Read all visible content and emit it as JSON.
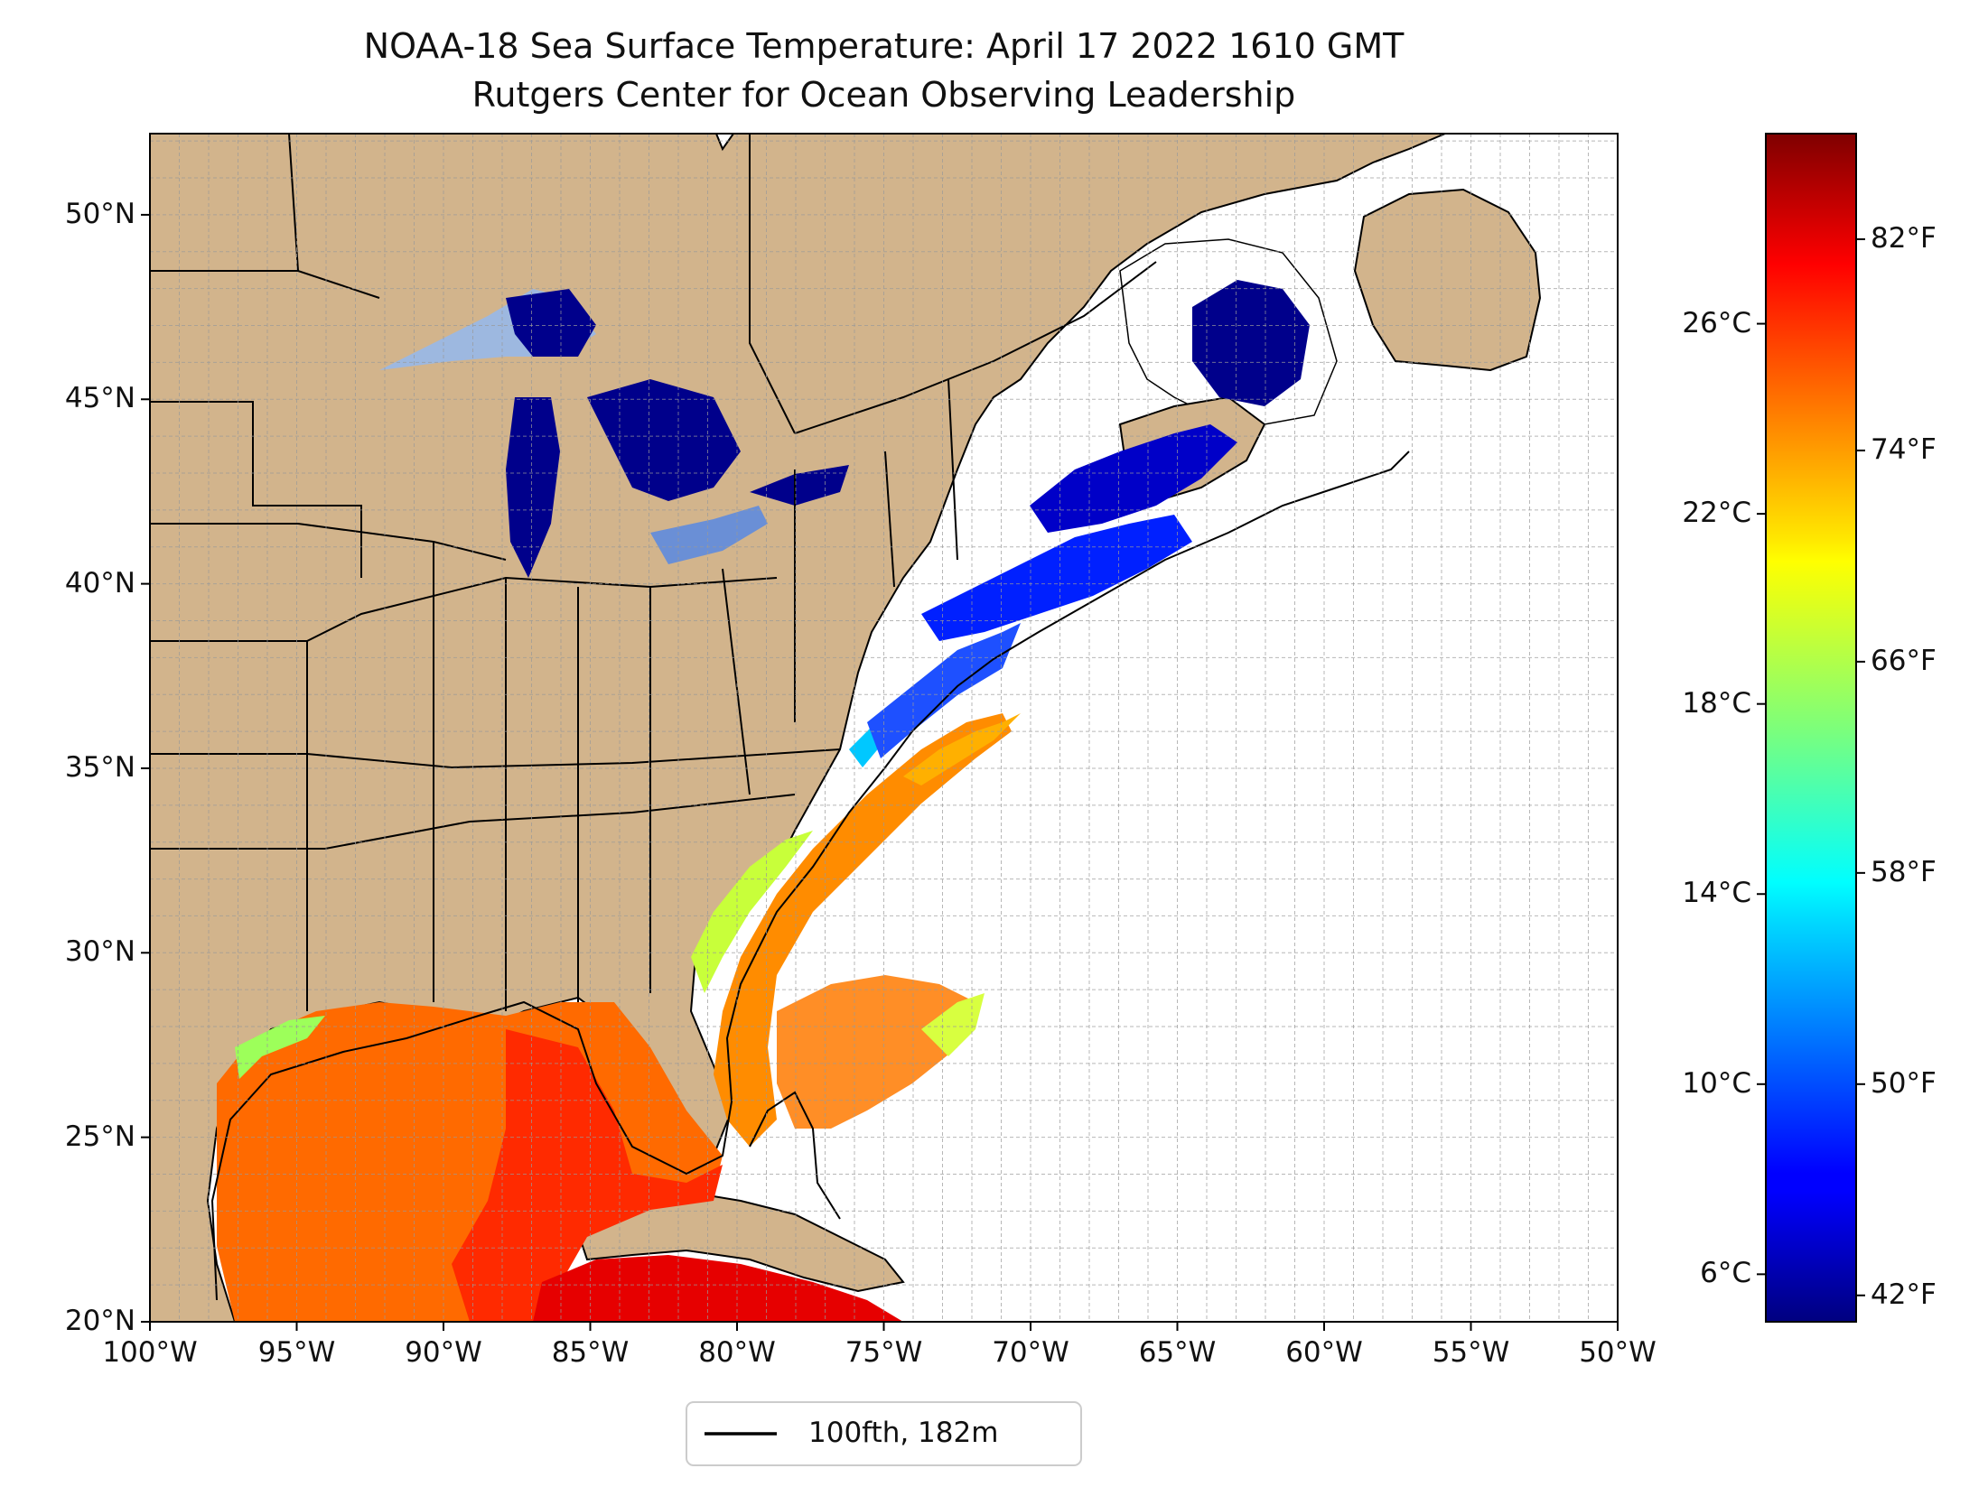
{
  "title_line1": "NOAA-18 Sea Surface Temperature: April 17 2022 1610 GMT",
  "title_line2": "Rutgers Center for Ocean Observing Leadership",
  "map": {
    "lon_range": [
      -100,
      -50
    ],
    "lat_range": [
      20,
      52.2
    ],
    "lat_ticks": [
      {
        "value": 50,
        "label": "50°N"
      },
      {
        "value": 45,
        "label": "45°N"
      },
      {
        "value": 40,
        "label": "40°N"
      },
      {
        "value": 35,
        "label": "35°N"
      },
      {
        "value": 30,
        "label": "30°N"
      },
      {
        "value": 25,
        "label": "25°N"
      },
      {
        "value": 20,
        "label": "20°N"
      }
    ],
    "lon_ticks": [
      {
        "value": -100,
        "label": "100°W"
      },
      {
        "value": -95,
        "label": "95°W"
      },
      {
        "value": -90,
        "label": "90°W"
      },
      {
        "value": -85,
        "label": "85°W"
      },
      {
        "value": -80,
        "label": "80°W"
      },
      {
        "value": -75,
        "label": "75°W"
      },
      {
        "value": -70,
        "label": "70°W"
      },
      {
        "value": -65,
        "label": "65°W"
      },
      {
        "value": -60,
        "label": "60°W"
      },
      {
        "value": -55,
        "label": "55°W"
      },
      {
        "value": -50,
        "label": "50°W"
      }
    ],
    "grid": true,
    "land_color": "#d2b48c",
    "lake_color": "#9db8e0",
    "ocean_color": "#ffffff"
  },
  "legend": {
    "label": "100fth, 182m",
    "line_color": "#000000",
    "placement": "below map, centered"
  },
  "colorbar": {
    "colormap": "jet",
    "range_c": [
      5,
      30
    ],
    "celsius_ticks": [
      {
        "value": 26,
        "label": "26°C"
      },
      {
        "value": 22,
        "label": "22°C"
      },
      {
        "value": 18,
        "label": "18°C"
      },
      {
        "value": 14,
        "label": "14°C"
      },
      {
        "value": 10,
        "label": "10°C"
      },
      {
        "value": 6,
        "label": "6°C"
      }
    ],
    "fahrenheit_ticks": [
      {
        "value": 82,
        "label": "82°F"
      },
      {
        "value": 74,
        "label": "74°F"
      },
      {
        "value": 66,
        "label": "66°F"
      },
      {
        "value": 58,
        "label": "58°F"
      },
      {
        "value": 50,
        "label": "50°F"
      },
      {
        "value": 42,
        "label": "42°F"
      }
    ]
  }
}
